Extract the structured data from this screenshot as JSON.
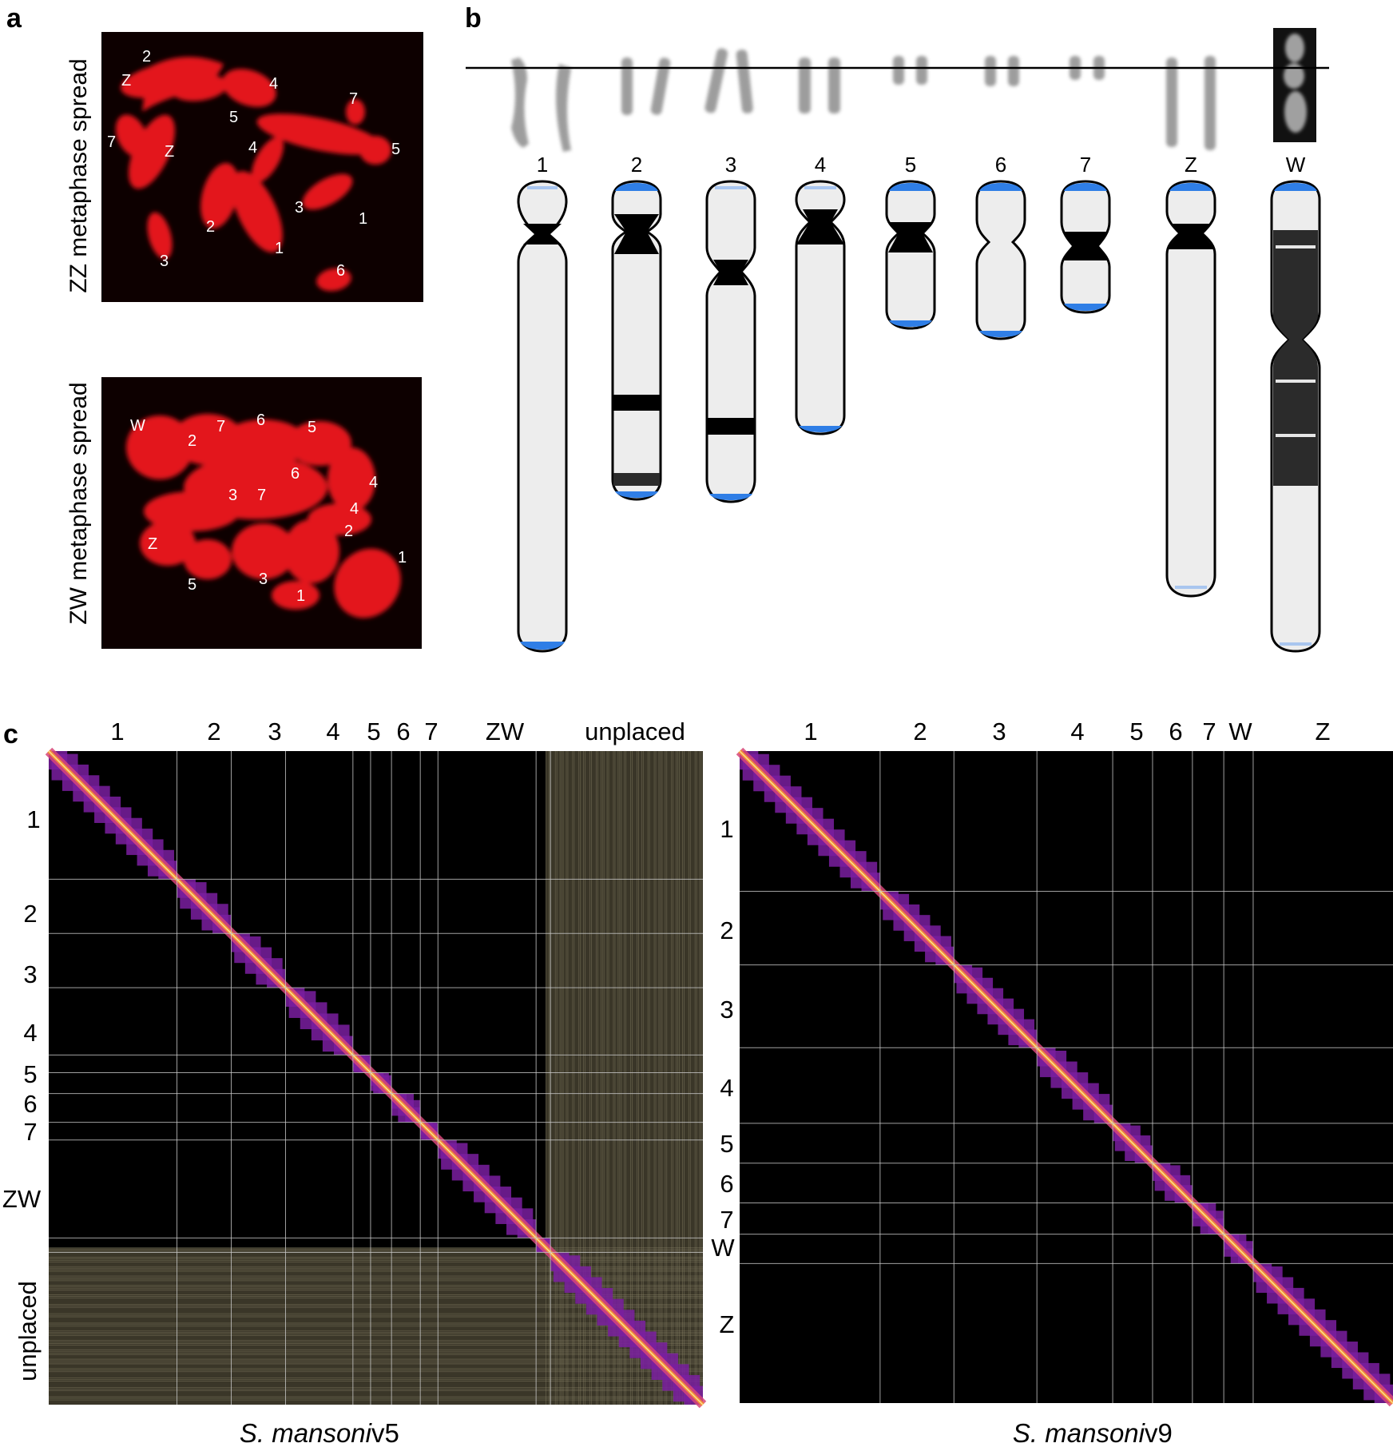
{
  "panel_labels": {
    "a": "a",
    "b": "b",
    "c": "c"
  },
  "panel_a": {
    "zz_title": "ZZ metaphase spread",
    "zw_title": "ZW metaphase spread",
    "zz_labels": [
      "2",
      "Z",
      "4",
      "7",
      "5",
      "7",
      "Z",
      "4",
      "5",
      "3",
      "1",
      "2",
      "1",
      "3",
      "6"
    ],
    "zw_labels": [
      "W",
      "2",
      "7",
      "6",
      "5",
      "6",
      "4",
      "3",
      "7",
      "4",
      "2",
      "Z",
      "1",
      "5",
      "3",
      "1"
    ]
  },
  "panel_b": {
    "chromosomes": [
      "1",
      "2",
      "3",
      "4",
      "5",
      "6",
      "7",
      "Z",
      "W"
    ],
    "colors": {
      "body": "#ededed",
      "heterochromatin": "#000000",
      "w_dark": "#2b2b2b",
      "telomere": "#2f7ee6",
      "telomere_light": "#a9c6ef"
    }
  },
  "panel_c": {
    "left": {
      "caption_italic": "S. mansoni",
      "caption_version": " v5",
      "top_labels": [
        "1",
        "2",
        "3",
        "4",
        "5",
        "6",
        "7",
        "ZW",
        "unplaced"
      ],
      "side_labels": [
        "1",
        "2",
        "3",
        "4",
        "5",
        "6",
        "7",
        "ZW",
        "unplaced"
      ]
    },
    "right": {
      "caption_italic": "S. mansoni",
      "caption_version": " v9",
      "top_labels": [
        "1",
        "2",
        "3",
        "4",
        "5",
        "6",
        "7",
        "W",
        "Z"
      ],
      "side_labels": [
        "1",
        "2",
        "3",
        "4",
        "5",
        "6",
        "7",
        "W",
        "Z"
      ]
    }
  }
}
